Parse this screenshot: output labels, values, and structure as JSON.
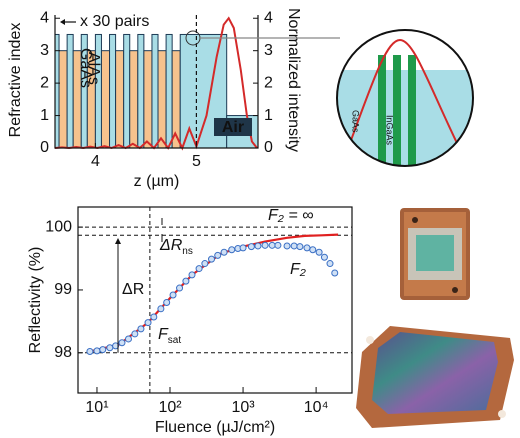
{
  "chart_data": [
    {
      "type": "line",
      "xlabel": "z (µm)",
      "ylabel": "Refractive index",
      "y2label": "Normalized intensity",
      "xlim": [
        3.6,
        5.61
      ],
      "xticks": [
        4,
        5
      ],
      "ylim": [
        0,
        4.1
      ],
      "yticks": [
        0,
        1,
        2,
        3,
        4
      ],
      "y2lim": [
        0,
        4.1
      ],
      "y2ticks": [
        0,
        1,
        2,
        3,
        4
      ],
      "layers": {
        "bins": [
          3.6,
          3.64,
          3.72,
          3.78,
          3.86,
          3.92,
          4.0,
          4.06,
          4.14,
          4.2,
          4.28,
          4.34,
          4.42,
          4.48,
          4.56,
          4.62,
          4.7,
          4.76,
          4.84,
          5.3,
          5.61
        ],
        "values": [
          3.5,
          3,
          3.5,
          3,
          3.5,
          3,
          3.5,
          3,
          3.5,
          3,
          3.5,
          3,
          3.5,
          3,
          3.5,
          3,
          3.5,
          3,
          3.5,
          1
        ],
        "colors": [
          "#a9dde6",
          "#f6c28d",
          "#a9dde6",
          "#f6c28d",
          "#a9dde6",
          "#f6c28d",
          "#a9dde6",
          "#f6c28d",
          "#a9dde6",
          "#f6c28d",
          "#a9dde6",
          "#f6c28d",
          "#a9dde6",
          "#f6c28d",
          "#a9dde6",
          "#f6c28d",
          "#a9dde6",
          "#f6c28d",
          "#a9dde6",
          "#a9dde6"
        ]
      },
      "series": [
        {
          "color": "#d42a2a",
          "axis": "y2",
          "x": [
            3.6,
            3.67,
            3.74,
            3.81,
            3.88,
            3.95,
            4.02,
            4.09,
            4.16,
            4.23,
            4.3,
            4.37,
            4.44,
            4.51,
            4.58,
            4.65,
            4.72,
            4.79,
            4.86,
            4.93,
            5.0,
            5.1,
            5.2,
            5.27,
            5.32,
            5.37,
            5.44,
            5.5,
            5.55,
            5.6
          ],
          "values": [
            0,
            0.02,
            0,
            0.03,
            0,
            0.04,
            0,
            0.06,
            0,
            0.09,
            0,
            0.13,
            0,
            0.2,
            0,
            0.3,
            0,
            0.45,
            0,
            0.6,
            0.05,
            1.0,
            2.8,
            3.8,
            4.0,
            3.7,
            2.4,
            1.0,
            0.2,
            0
          ]
        }
      ],
      "vline": 5.0,
      "annotations": {
        "pairs": "x 30 pairs",
        "gaas": "GaAs",
        "alas": "AlAs",
        "air": "Air"
      }
    },
    {
      "type": "scatter",
      "xlabel": "Fluence (µJ/cm²)",
      "ylabel": "Reflectivity (%)",
      "xscale": "log",
      "xlim": [
        5.5,
        31000
      ],
      "xticks": [
        {
          "value": 10,
          "label": "10¹"
        },
        {
          "value": 100,
          "label": "10²"
        },
        {
          "value": 1000,
          "label": "10³"
        },
        {
          "value": 10000,
          "label": "10⁴"
        }
      ],
      "ylim": [
        97.36,
        100.32
      ],
      "yticks": [
        98,
        99,
        100
      ],
      "series": [
        {
          "name": "F₂ = ∞",
          "color": "#e02020",
          "marker": "line",
          "x": [
            8,
            20,
            50,
            100,
            200,
            500,
            1000,
            2000,
            4000,
            7000,
            12000,
            20000
          ],
          "values": [
            98.02,
            98.13,
            98.48,
            98.87,
            99.24,
            99.58,
            99.69,
            99.77,
            99.83,
            99.86,
            99.87,
            99.88
          ]
        },
        {
          "name": "F₂",
          "color": "#3a6fc4",
          "marker": "circle",
          "x": [
            8,
            10,
            12,
            15,
            18,
            22,
            27,
            33,
            40,
            50,
            60,
            75,
            90,
            110,
            135,
            165,
            200,
            250,
            300,
            370,
            450,
            550,
            700,
            850,
            1000,
            1300,
            1600,
            2000,
            2500,
            3000,
            4000,
            5000,
            6000,
            7500,
            9000,
            11000,
            13000,
            15500,
            18000
          ],
          "values": [
            98.02,
            98.03,
            98.05,
            98.08,
            98.11,
            98.16,
            98.22,
            98.3,
            98.38,
            98.48,
            98.57,
            98.7,
            98.8,
            98.92,
            99.03,
            99.14,
            99.24,
            99.34,
            99.42,
            99.49,
            99.55,
            99.6,
            99.64,
            99.66,
            99.67,
            99.69,
            99.7,
            99.71,
            99.71,
            99.71,
            99.7,
            99.7,
            99.69,
            99.67,
            99.64,
            99.6,
            99.52,
            99.42,
            99.27
          ]
        }
      ],
      "reference_lines": {
        "y": [
          100,
          99.87,
          98
        ],
        "x": [
          53
        ]
      },
      "annotations": {
        "delta_r": "ΔR",
        "delta_r_ns": {
          "text": "ΔR",
          "sub": "ns"
        },
        "f_sat": {
          "text": "F",
          "sub": "sat"
        }
      }
    }
  ],
  "inset": {
    "labels": [
      "GaAs",
      "InGaAs"
    ]
  }
}
